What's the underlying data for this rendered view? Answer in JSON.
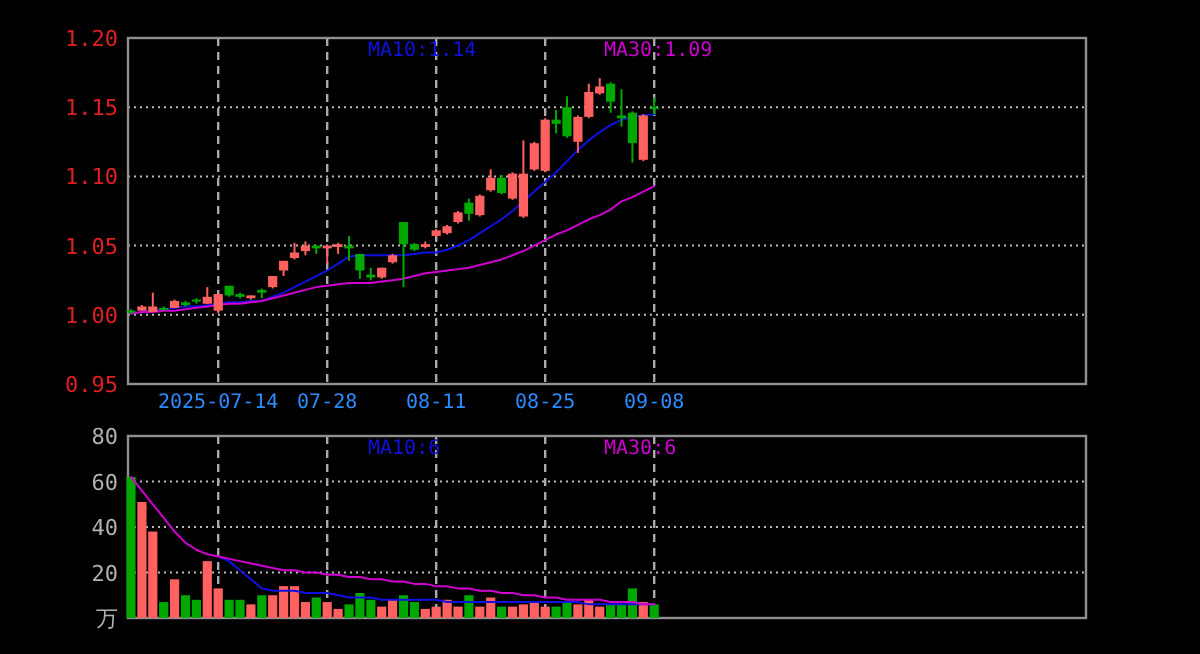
{
  "chart_data": [
    {
      "type": "candlestick",
      "categories": [
        null,
        null,
        null,
        null,
        null,
        null,
        null,
        null,
        "2025-07-14",
        null,
        null,
        null,
        null,
        null,
        null,
        null,
        null,
        null,
        "07-28",
        null,
        null,
        null,
        null,
        null,
        null,
        null,
        null,
        null,
        "08-11",
        null,
        null,
        null,
        null,
        null,
        null,
        null,
        null,
        null,
        "08-25",
        null,
        null,
        null,
        null,
        null,
        null,
        null,
        null,
        null,
        "09-08"
      ],
      "ohlc": [
        [
          1.003,
          1.004,
          1.001,
          1.002
        ],
        [
          1.003,
          1.007,
          1.003,
          1.006
        ],
        [
          1.002,
          1.016,
          1.002,
          1.006
        ],
        [
          1.005,
          1.006,
          1.003,
          1.004
        ],
        [
          1.005,
          1.011,
          1.005,
          1.01
        ],
        [
          1.009,
          1.01,
          1.006,
          1.007
        ],
        [
          1.011,
          1.012,
          1.008,
          1.01
        ],
        [
          1.008,
          1.02,
          1.008,
          1.013
        ],
        [
          1.003,
          1.015,
          1.001,
          1.015
        ],
        [
          1.021,
          1.021,
          1.013,
          1.014
        ],
        [
          1.015,
          1.016,
          1.012,
          1.013
        ],
        [
          1.012,
          1.014,
          1.011,
          1.014
        ],
        [
          1.018,
          1.019,
          1.012,
          1.016
        ],
        [
          1.02,
          1.028,
          1.019,
          1.028
        ],
        [
          1.032,
          1.039,
          1.028,
          1.039
        ],
        [
          1.041,
          1.052,
          1.04,
          1.045
        ],
        [
          1.046,
          1.053,
          1.043,
          1.05
        ],
        [
          1.05,
          1.05,
          1.044,
          1.048
        ],
        [
          1.048,
          1.05,
          1.037,
          1.05
        ],
        [
          1.049,
          1.052,
          1.044,
          1.051
        ],
        [
          1.05,
          1.057,
          1.039,
          1.048
        ],
        [
          1.044,
          1.044,
          1.026,
          1.032
        ],
        [
          1.029,
          1.034,
          1.025,
          1.027
        ],
        [
          1.027,
          1.034,
          1.026,
          1.034
        ],
        [
          1.038,
          1.044,
          1.037,
          1.043
        ],
        [
          1.067,
          1.067,
          1.02,
          1.051
        ],
        [
          1.051,
          1.052,
          1.046,
          1.047
        ],
        [
          1.049,
          1.053,
          1.048,
          1.051
        ],
        [
          1.057,
          1.062,
          1.056,
          1.061
        ],
        [
          1.059,
          1.065,
          1.058,
          1.064
        ],
        [
          1.067,
          1.075,
          1.066,
          1.074
        ],
        [
          1.081,
          1.084,
          1.068,
          1.073
        ],
        [
          1.072,
          1.087,
          1.071,
          1.086
        ],
        [
          1.09,
          1.105,
          1.089,
          1.099
        ],
        [
          1.099,
          1.101,
          1.087,
          1.088
        ],
        [
          1.084,
          1.103,
          1.083,
          1.102
        ],
        [
          1.071,
          1.126,
          1.07,
          1.102
        ],
        [
          1.105,
          1.125,
          1.104,
          1.124
        ],
        [
          1.104,
          1.142,
          1.103,
          1.141
        ],
        [
          1.141,
          1.148,
          1.131,
          1.138
        ],
        [
          1.15,
          1.158,
          1.128,
          1.129
        ],
        [
          1.125,
          1.144,
          1.117,
          1.143
        ],
        [
          1.143,
          1.167,
          1.142,
          1.161
        ],
        [
          1.16,
          1.171,
          1.159,
          1.165
        ],
        [
          1.167,
          1.168,
          1.146,
          1.154
        ],
        [
          1.144,
          1.163,
          1.136,
          1.142
        ],
        [
          1.146,
          1.147,
          1.11,
          1.124
        ],
        [
          1.112,
          1.145,
          1.111,
          1.144
        ],
        [
          1.15,
          1.157,
          1.145,
          1.149
        ]
      ],
      "colors": [
        "#00a800",
        "#ff6060",
        "#ff6060",
        "#00a800",
        "#ff6060",
        "#00a800",
        "#00a800",
        "#ff6060",
        "#ff6060",
        "#00a800",
        "#00a800",
        "#ff6060",
        "#00a800",
        "#ff6060",
        "#ff6060",
        "#ff6060",
        "#ff6060",
        "#00a800",
        "#ff6060",
        "#ff6060",
        "#00a800",
        "#00a800",
        "#00a800",
        "#ff6060",
        "#ff6060",
        "#00a800",
        "#00a800",
        "#ff6060",
        "#ff6060",
        "#ff6060",
        "#ff6060",
        "#00a800",
        "#ff6060",
        "#ff6060",
        "#00a800",
        "#ff6060",
        "#ff6060",
        "#ff6060",
        "#ff6060",
        "#00a800",
        "#00a800",
        "#ff6060",
        "#ff6060",
        "#ff6060",
        "#00a800",
        "#00a800",
        "#00a800",
        "#ff6060",
        "#00a800"
      ],
      "series": [
        {
          "name": "MA10:1.14",
          "type": "line",
          "color": "#1010e0",
          "values": [
            1.001,
            1.002,
            1.003,
            1.004,
            1.005,
            1.006,
            1.006,
            1.007,
            1.008,
            1.009,
            1.009,
            1.01,
            1.01,
            1.013,
            1.016,
            1.02,
            1.024,
            1.028,
            1.032,
            1.037,
            1.042,
            1.043,
            1.043,
            1.043,
            1.043,
            1.043,
            1.044,
            1.045,
            1.045,
            1.047,
            1.05,
            1.054,
            1.059,
            1.064,
            1.069,
            1.075,
            1.082,
            1.089,
            1.096,
            1.103,
            1.111,
            1.119,
            1.126,
            1.132,
            1.137,
            1.141,
            1.143,
            1.144,
            1.145
          ]
        },
        {
          "name": "MA30:1.09",
          "type": "line",
          "color": "#d000d0",
          "values": [
            1.001,
            1.002,
            1.002,
            1.003,
            1.003,
            1.004,
            1.005,
            1.006,
            1.007,
            1.008,
            1.008,
            1.009,
            1.01,
            1.012,
            1.014,
            1.016,
            1.018,
            1.02,
            1.021,
            1.022,
            1.023,
            1.023,
            1.023,
            1.024,
            1.025,
            1.026,
            1.028,
            1.03,
            1.031,
            1.032,
            1.033,
            1.034,
            1.036,
            1.038,
            1.04,
            1.043,
            1.046,
            1.05,
            1.054,
            1.058,
            1.061,
            1.065,
            1.069,
            1.072,
            1.076,
            1.082,
            1.085,
            1.089,
            1.093
          ]
        }
      ],
      "ylim": [
        0.95,
        1.2
      ],
      "yticks": [
        {
          "value": 0.95,
          "label": "0.95"
        },
        {
          "value": 1.0,
          "label": "1.00"
        },
        {
          "value": 1.05,
          "label": "1.05"
        },
        {
          "value": 1.1,
          "label": "1.10"
        },
        {
          "value": 1.15,
          "label": "1.15"
        },
        {
          "value": 1.2,
          "label": "1.20"
        }
      ],
      "grid": true,
      "legend": "top"
    },
    {
      "type": "bar",
      "categories": [
        null,
        null,
        null,
        null,
        null,
        null,
        null,
        null,
        null,
        null,
        null,
        null,
        null,
        null,
        null,
        null,
        null,
        null,
        null,
        null,
        null,
        null,
        null,
        null,
        null,
        null,
        null,
        null,
        null,
        null,
        null,
        null,
        null,
        null,
        null,
        null,
        null,
        null,
        null,
        null,
        null,
        null,
        null,
        null,
        null,
        null,
        null,
        null,
        null
      ],
      "values": [
        62,
        51,
        38,
        7,
        17,
        10,
        8,
        25,
        13,
        8,
        8,
        6,
        10,
        10,
        14,
        14,
        7,
        9,
        7,
        4,
        6,
        11,
        8,
        5,
        8,
        10,
        7,
        4,
        5,
        8,
        5,
        10,
        5,
        9,
        5,
        5,
        6,
        7,
        5,
        5,
        7,
        6,
        8,
        5,
        6,
        6,
        13,
        7,
        6
      ],
      "colors": [
        "#00a800",
        "#ff6060",
        "#ff6060",
        "#00a800",
        "#ff6060",
        "#00a800",
        "#00a800",
        "#ff6060",
        "#ff6060",
        "#00a800",
        "#00a800",
        "#ff6060",
        "#00a800",
        "#ff6060",
        "#ff6060",
        "#ff6060",
        "#ff6060",
        "#00a800",
        "#ff6060",
        "#ff6060",
        "#00a800",
        "#00a800",
        "#00a800",
        "#ff6060",
        "#ff6060",
        "#00a800",
        "#00a800",
        "#ff6060",
        "#ff6060",
        "#ff6060",
        "#ff6060",
        "#00a800",
        "#ff6060",
        "#ff6060",
        "#00a800",
        "#ff6060",
        "#ff6060",
        "#ff6060",
        "#ff6060",
        "#00a800",
        "#00a800",
        "#ff6060",
        "#ff6060",
        "#ff6060",
        "#00a800",
        "#00a800",
        "#00a800",
        "#ff6060",
        "#00a800"
      ],
      "series": [
        {
          "name": "MA10:6",
          "type": "line",
          "color": "#1010e0",
          "values": [
            null,
            null,
            null,
            null,
            null,
            null,
            null,
            null,
            27,
            25,
            21,
            17,
            13,
            12,
            12,
            12,
            11,
            11,
            11,
            10,
            9,
            9,
            9,
            8,
            8,
            8,
            8,
            8,
            8,
            7,
            7,
            7,
            7,
            7,
            7,
            7,
            7,
            7,
            7,
            7,
            7,
            7,
            6,
            6,
            6,
            6,
            6,
            6,
            6
          ]
        },
        {
          "name": "MA30:6",
          "type": "line",
          "color": "#d000d0",
          "values": [
            62,
            56,
            50,
            44,
            38,
            33,
            30,
            28,
            27,
            26,
            25,
            24,
            23,
            22,
            21,
            21,
            20,
            20,
            19,
            19,
            18,
            18,
            17,
            17,
            16,
            16,
            15,
            15,
            14,
            14,
            13,
            13,
            12,
            12,
            11,
            11,
            10,
            10,
            9,
            9,
            8,
            8,
            8,
            8,
            7,
            7,
            7,
            6,
            6
          ]
        }
      ],
      "ylim": [
        0,
        80
      ],
      "yticks": [
        {
          "value": 0,
          "label": "万"
        },
        20,
        40,
        60,
        80
      ],
      "grid": true,
      "legend": "top"
    }
  ]
}
